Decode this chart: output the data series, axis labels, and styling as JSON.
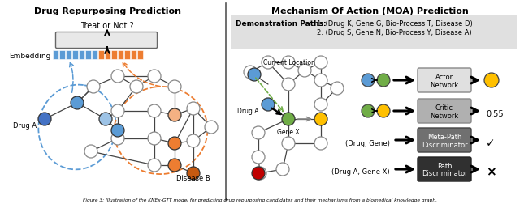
{
  "title_left": "Drug Repurposing Prediction",
  "title_right": "Mechanism Of Action (MOA) Prediction",
  "embed_blue_color": "#5b9bd5",
  "embed_orange_color": "#ed7d31",
  "rfc_box_color": "#e8e8e8",
  "demo_box_color": "#e0e0e0",
  "node_white": "#ffffff",
  "node_blue_dark": "#4472c4",
  "node_blue_light": "#9dc3e6",
  "node_blue_mid": "#5b9bd5",
  "node_orange_dark": "#c55a11",
  "node_orange_mid": "#ed7d31",
  "node_orange_light": "#f4b183",
  "node_green": "#70ad47",
  "node_yellow": "#ffc000",
  "node_red": "#c00000",
  "actor_box": "#e0e0e0",
  "critic_box": "#b0b0b0",
  "metapath_box": "#707070",
  "path_box": "#303030",
  "divider_color": "#555555",
  "dashed_blue": "#5b9bd5",
  "dashed_orange": "#ed7d31",
  "green_arrow": "#70ad47",
  "caption": "Figure 3: Illustration of the KNEx-GTT model for predicting drug repurposing candidates and their mechanisms from a biomedical knowledge graph."
}
